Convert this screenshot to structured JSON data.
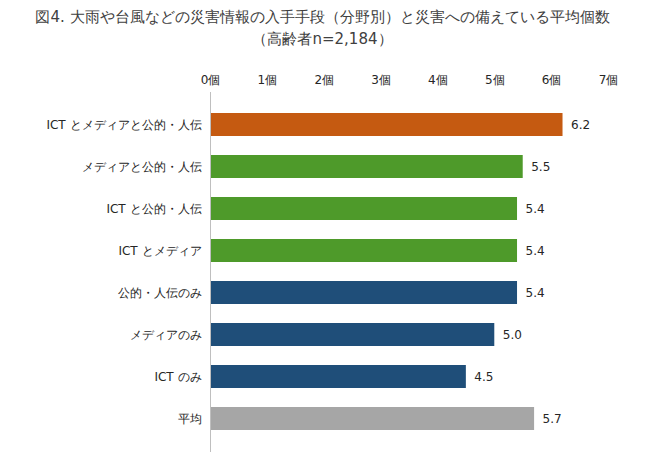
{
  "chart_data": {
    "type": "bar",
    "title": "図4. 大雨や台風などの災害情報の入手手段（分野別）と災害への備えている平均個数",
    "subtitle": "（高齢者n=2,184）",
    "orientation": "horizontal",
    "categories": [
      "ICT とメディアと公的・人伝",
      "メディアと公的・人伝",
      "ICT と公的・人伝",
      "ICT とメディア",
      "公的・人伝のみ",
      "メディアのみ",
      "ICT のみ",
      "平均"
    ],
    "values": [
      6.2,
      5.5,
      5.4,
      5.4,
      5.4,
      5.0,
      4.5,
      5.7
    ],
    "value_labels": [
      "6.2",
      "5.5",
      "5.4",
      "5.4",
      "5.4",
      "5.0",
      "4.5",
      "5.7"
    ],
    "colors": [
      "#c55a11",
      "#4e9a2a",
      "#4e9a2a",
      "#4e9a2a",
      "#1f4e79",
      "#1f4e79",
      "#1f4e79",
      "#a6a6a6"
    ],
    "xlim": [
      0,
      7
    ],
    "xticks": [
      {
        "value": 0,
        "label": "0個"
      },
      {
        "value": 1,
        "label": "1個"
      },
      {
        "value": 2,
        "label": "2個"
      },
      {
        "value": 3,
        "label": "3個"
      },
      {
        "value": 4,
        "label": "4個"
      },
      {
        "value": 5,
        "label": "5個"
      },
      {
        "value": 6,
        "label": "6個"
      },
      {
        "value": 7,
        "label": "7個"
      }
    ],
    "grid": false,
    "data_labels": true
  }
}
